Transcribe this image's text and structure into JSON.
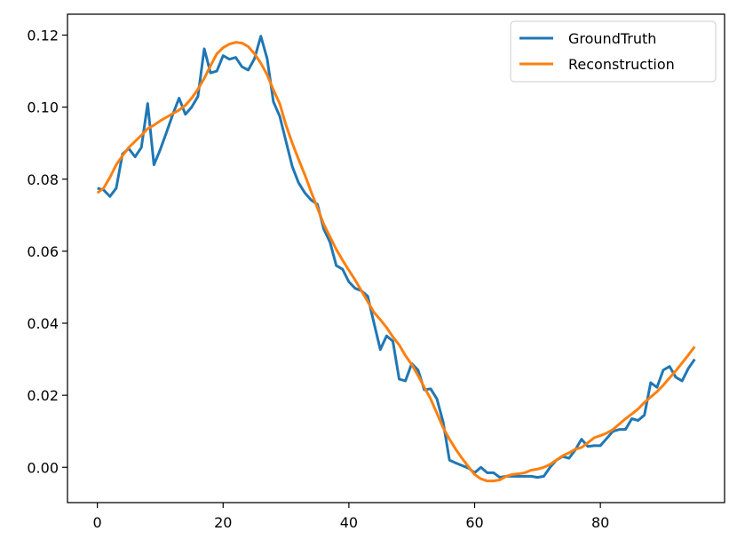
{
  "chart_data": {
    "type": "line",
    "xlim": [
      -4.75,
      99.75
    ],
    "ylim": [
      -0.0098,
      0.1258
    ],
    "xticks": [
      0,
      20,
      40,
      60,
      80
    ],
    "xtick_labels": [
      "0",
      "20",
      "40",
      "60",
      "80"
    ],
    "yticks": [
      0.0,
      0.02,
      0.04,
      0.06,
      0.08,
      0.1,
      0.12
    ],
    "ytick_labels": [
      "0.00",
      "0.02",
      "0.04",
      "0.06",
      "0.08",
      "0.10",
      "0.12"
    ],
    "grid": false,
    "legend_position": "top-right",
    "series": [
      {
        "name": "GroundTruth",
        "color": "#1f77b4",
        "x": [
          0,
          1,
          2,
          3,
          4,
          5,
          6,
          7,
          8,
          9,
          10,
          11,
          12,
          13,
          14,
          15,
          16,
          17,
          18,
          19,
          20,
          21,
          22,
          23,
          24,
          25,
          26,
          27,
          28,
          29,
          30,
          31,
          32,
          33,
          34,
          35,
          36,
          37,
          38,
          39,
          40,
          41,
          42,
          43,
          44,
          45,
          46,
          47,
          48,
          49,
          50,
          51,
          52,
          53,
          54,
          55,
          56,
          57,
          58,
          59,
          60,
          61,
          62,
          63,
          64,
          65,
          66,
          67,
          68,
          69,
          70,
          71,
          72,
          73,
          74,
          75,
          76,
          77,
          78,
          79,
          80,
          81,
          82,
          83,
          84,
          85,
          86,
          87,
          88,
          89,
          90,
          91,
          92,
          93,
          94,
          95
        ],
        "y": [
          0.0775,
          0.077,
          0.0752,
          0.0775,
          0.087,
          0.0885,
          0.0862,
          0.0888,
          0.101,
          0.084,
          0.0882,
          0.093,
          0.098,
          0.1025,
          0.098,
          0.1,
          0.103,
          0.1162,
          0.1095,
          0.11,
          0.1143,
          0.1133,
          0.1138,
          0.1112,
          0.1103,
          0.1135,
          0.1197,
          0.1135,
          0.1015,
          0.0975,
          0.0905,
          0.0835,
          0.079,
          0.0762,
          0.0742,
          0.073,
          0.0662,
          0.0625,
          0.056,
          0.055,
          0.0515,
          0.0497,
          0.049,
          0.0475,
          0.04,
          0.0327,
          0.0365,
          0.035,
          0.0245,
          0.024,
          0.0288,
          0.027,
          0.0215,
          0.0218,
          0.019,
          0.0125,
          0.002,
          0.0012,
          0.0005,
          -0.0002,
          -0.0015,
          0.0,
          -0.0015,
          -0.0015,
          -0.0028,
          -0.0025,
          -0.0025,
          -0.0025,
          -0.0025,
          -0.0025,
          -0.0028,
          -0.0025,
          0.0,
          0.002,
          0.003,
          0.0025,
          0.0048,
          0.0078,
          0.0058,
          0.006,
          0.006,
          0.008,
          0.01,
          0.0105,
          0.0105,
          0.0135,
          0.013,
          0.0145,
          0.0235,
          0.0222,
          0.027,
          0.028,
          0.025,
          0.024,
          0.0275,
          0.03
        ]
      },
      {
        "name": "Reconstruction",
        "color": "#ff7f0e",
        "x": [
          0,
          1,
          2,
          3,
          4,
          5,
          6,
          7,
          8,
          9,
          10,
          11,
          12,
          13,
          14,
          15,
          16,
          17,
          18,
          19,
          20,
          21,
          22,
          23,
          24,
          25,
          26,
          27,
          28,
          29,
          30,
          31,
          32,
          33,
          34,
          35,
          36,
          37,
          38,
          39,
          40,
          41,
          42,
          43,
          44,
          45,
          46,
          47,
          48,
          49,
          50,
          51,
          52,
          53,
          54,
          55,
          56,
          57,
          58,
          59,
          60,
          61,
          62,
          63,
          64,
          65,
          66,
          67,
          68,
          69,
          70,
          71,
          72,
          73,
          74,
          75,
          76,
          77,
          78,
          79,
          80,
          81,
          82,
          83,
          84,
          85,
          86,
          87,
          88,
          89,
          90,
          91,
          92,
          93,
          94,
          95
        ],
        "y": [
          0.0762,
          0.0775,
          0.0805,
          0.084,
          0.0865,
          0.0888,
          0.0905,
          0.0922,
          0.094,
          0.095,
          0.0962,
          0.0972,
          0.0982,
          0.0992,
          0.1005,
          0.1025,
          0.105,
          0.108,
          0.1115,
          0.1148,
          0.1165,
          0.1175,
          0.118,
          0.1178,
          0.1168,
          0.1148,
          0.1122,
          0.109,
          0.1048,
          0.101,
          0.095,
          0.09,
          0.0855,
          0.0812,
          0.0765,
          0.072,
          0.0675,
          0.064,
          0.0605,
          0.0575,
          0.0547,
          0.052,
          0.049,
          0.046,
          0.043,
          0.041,
          0.0388,
          0.0362,
          0.034,
          0.031,
          0.0285,
          0.0255,
          0.0222,
          0.019,
          0.015,
          0.011,
          0.0078,
          0.005,
          0.0025,
          0.0002,
          -0.002,
          -0.0032,
          -0.0038,
          -0.0038,
          -0.0035,
          -0.0025,
          -0.002,
          -0.0018,
          -0.0015,
          -0.0008,
          -0.0005,
          0.0,
          0.0008,
          0.002,
          0.0032,
          0.004,
          0.005,
          0.0055,
          0.0068,
          0.0082,
          0.0088,
          0.0095,
          0.0105,
          0.012,
          0.0135,
          0.0148,
          0.0162,
          0.018,
          0.0195,
          0.021,
          0.0228,
          0.0248,
          0.0268,
          0.029,
          0.0312,
          0.0335
        ]
      }
    ]
  }
}
